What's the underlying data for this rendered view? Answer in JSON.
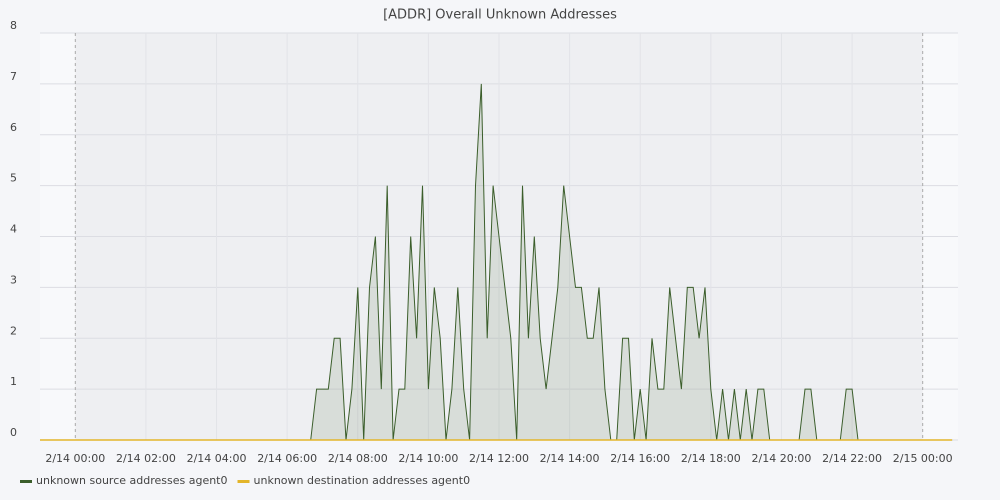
{
  "chart_data": {
    "type": "line",
    "title": "[ADDR] Overall Unknown Addresses",
    "x": [
      "2/13 23:00",
      "2/14 06:40",
      "2/14 06:50",
      "2/14 07:00",
      "2/14 07:10",
      "2/14 07:20",
      "2/14 07:30",
      "2/14 07:40",
      "2/14 07:50",
      "2/14 08:00",
      "2/14 08:10",
      "2/14 08:20",
      "2/14 08:30",
      "2/14 08:40",
      "2/14 08:50",
      "2/14 09:00",
      "2/14 09:10",
      "2/14 09:20",
      "2/14 09:30",
      "2/14 09:40",
      "2/14 09:50",
      "2/14 10:00",
      "2/14 10:10",
      "2/14 10:20",
      "2/14 10:30",
      "2/14 10:40",
      "2/14 10:50",
      "2/14 11:00",
      "2/14 11:10",
      "2/14 11:20",
      "2/14 11:30",
      "2/14 11:40",
      "2/14 11:50",
      "2/14 12:00",
      "2/14 12:10",
      "2/14 12:20",
      "2/14 12:30",
      "2/14 12:40",
      "2/14 12:50",
      "2/14 13:00",
      "2/14 13:10",
      "2/14 13:20",
      "2/14 13:30",
      "2/14 13:40",
      "2/14 13:50",
      "2/14 14:00",
      "2/14 14:10",
      "2/14 14:20",
      "2/14 14:30",
      "2/14 14:40",
      "2/14 14:50",
      "2/14 15:00",
      "2/14 15:10",
      "2/14 15:20",
      "2/14 15:30",
      "2/14 15:40",
      "2/14 15:50",
      "2/14 16:00",
      "2/14 16:10",
      "2/14 16:20",
      "2/14 16:30",
      "2/14 16:40",
      "2/14 16:50",
      "2/14 17:00",
      "2/14 17:10",
      "2/14 17:20",
      "2/14 17:30",
      "2/14 17:40",
      "2/14 17:50",
      "2/14 18:00",
      "2/14 18:10",
      "2/14 18:20",
      "2/14 18:30",
      "2/14 18:40",
      "2/14 18:50",
      "2/14 19:00",
      "2/14 19:10",
      "2/14 19:20",
      "2/14 19:30",
      "2/14 19:40",
      "2/14 20:30",
      "2/14 20:40",
      "2/14 20:50",
      "2/14 21:00",
      "2/14 21:40",
      "2/14 21:50",
      "2/14 22:00",
      "2/14 22:10",
      "2/15 00:50"
    ],
    "series": [
      {
        "name": "unknown source addresses agent0",
        "color": "#3b5e2b",
        "values": [
          0,
          0,
          1,
          1,
          1,
          2,
          2,
          0,
          1,
          3,
          0,
          3,
          4,
          1,
          5,
          0,
          1,
          1,
          4,
          2,
          5,
          1,
          3,
          2,
          0,
          1,
          3,
          1,
          0,
          5,
          7,
          2,
          5,
          4,
          3,
          2,
          0,
          5,
          2,
          4,
          2,
          1,
          2,
          3,
          5,
          4,
          3,
          3,
          2,
          2,
          3,
          1,
          0,
          0,
          2,
          2,
          0,
          1,
          0,
          2,
          1,
          1,
          3,
          2,
          1,
          3,
          3,
          2,
          3,
          1,
          0,
          1,
          0,
          1,
          0,
          1,
          0,
          1,
          1,
          0,
          0,
          1,
          1,
          0,
          0,
          1,
          1,
          0,
          0
        ]
      },
      {
        "name": "unknown destination addresses agent0",
        "color": "#e3b52a",
        "values": [
          0,
          0,
          0,
          0,
          0,
          0,
          0,
          0,
          0,
          0,
          0,
          0,
          0,
          0,
          0,
          0,
          0,
          0,
          0,
          0,
          0,
          0,
          0,
          0,
          0,
          0,
          0,
          0,
          0,
          0,
          0,
          0,
          0,
          0,
          0,
          0,
          0,
          0,
          0,
          0,
          0,
          0,
          0,
          0,
          0,
          0,
          0,
          0,
          0,
          0,
          0,
          0,
          0,
          0,
          0,
          0,
          0,
          0,
          0,
          0,
          0,
          0,
          0,
          0,
          0,
          0,
          0,
          0,
          0,
          0,
          0,
          0,
          0,
          0,
          0,
          0,
          0,
          0,
          0,
          0,
          0,
          0,
          0,
          0,
          0,
          0,
          0,
          0,
          0
        ]
      }
    ],
    "xlim": [
      "2/13 23:00",
      "2/15 01:00"
    ],
    "xticks": [
      "2/14 00:00",
      "2/14 02:00",
      "2/14 04:00",
      "2/14 06:00",
      "2/14 08:00",
      "2/14 10:00",
      "2/14 12:00",
      "2/14 14:00",
      "2/14 16:00",
      "2/14 18:00",
      "2/14 20:00",
      "2/14 22:00",
      "2/15 00:00"
    ],
    "ylim": [
      0,
      8
    ],
    "yticks": [
      0,
      1,
      2,
      3,
      4,
      5,
      6,
      7,
      8
    ],
    "grid": true
  }
}
